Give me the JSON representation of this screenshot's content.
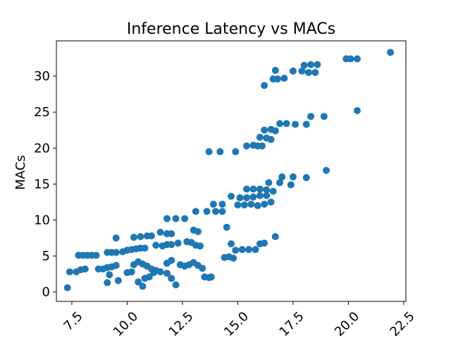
{
  "chart_data": {
    "type": "scatter",
    "title": "Inference Latency vs MACs",
    "xlabel": "",
    "ylabel": "MACs",
    "xlim": [
      6.8,
      22.6
    ],
    "ylim": [
      -1.3,
      34.9
    ],
    "x_ticks": [
      7.5,
      10.0,
      12.5,
      15.0,
      17.5,
      20.0,
      22.5
    ],
    "x_tick_labels": [
      "7.5",
      "10.0",
      "12.5",
      "15.0",
      "17.5",
      "20.0",
      "22.5"
    ],
    "y_ticks": [
      0,
      5,
      10,
      15,
      20,
      25,
      30
    ],
    "y_tick_labels": [
      "0",
      "5",
      "10",
      "15",
      "20",
      "25",
      "30"
    ],
    "grid": false,
    "legend": "none",
    "marker_color": "#1f77b4",
    "series": [
      {
        "points": [
          [
            7.3,
            0.6
          ],
          [
            7.4,
            2.8
          ],
          [
            7.7,
            2.8
          ],
          [
            7.9,
            3.1
          ],
          [
            8.1,
            3.2
          ],
          [
            7.8,
            5.1
          ],
          [
            8.0,
            5.1
          ],
          [
            8.2,
            5.1
          ],
          [
            8.4,
            5.1
          ],
          [
            8.6,
            5.1
          ],
          [
            8.7,
            3.2
          ],
          [
            8.9,
            3.2
          ],
          [
            9.1,
            3.4
          ],
          [
            9.3,
            3.5
          ],
          [
            9.5,
            3.7
          ],
          [
            9.1,
            5.5
          ],
          [
            9.3,
            5.5
          ],
          [
            9.5,
            5.5
          ],
          [
            9.8,
            5.6
          ],
          [
            10.0,
            5.8
          ],
          [
            10.2,
            5.9
          ],
          [
            10.4,
            6.0
          ],
          [
            10.6,
            6.1
          ],
          [
            10.8,
            6.1
          ],
          [
            9.5,
            7.5
          ],
          [
            10.3,
            7.6
          ],
          [
            10.6,
            7.7
          ],
          [
            10.9,
            7.8
          ],
          [
            11.1,
            7.8
          ],
          [
            9.1,
            1.3
          ],
          [
            9.2,
            2.4
          ],
          [
            9.6,
            1.6
          ],
          [
            10.0,
            2.7
          ],
          [
            10.2,
            2.8
          ],
          [
            10.5,
            1.4
          ],
          [
            10.7,
            0.8
          ],
          [
            10.8,
            1.9
          ],
          [
            11.0,
            2.1
          ],
          [
            11.2,
            2.7
          ],
          [
            10.3,
            3.8
          ],
          [
            10.5,
            4.2
          ],
          [
            10.7,
            3.9
          ],
          [
            10.9,
            3.6
          ],
          [
            11.1,
            3.2
          ],
          [
            11.3,
            3.0
          ],
          [
            11.5,
            2.8
          ],
          [
            11.3,
            6.5
          ],
          [
            11.6,
            6.4
          ],
          [
            11.8,
            6.6
          ],
          [
            12.0,
            6.6
          ],
          [
            12.3,
            6.8
          ],
          [
            11.5,
            8.3
          ],
          [
            11.8,
            8.1
          ],
          [
            12.0,
            8.1
          ],
          [
            11.8,
            10.2
          ],
          [
            12.2,
            10.2
          ],
          [
            12.6,
            10.2
          ],
          [
            11.8,
            2.6
          ],
          [
            12.0,
            1.9
          ],
          [
            12.2,
            1.0
          ],
          [
            11.8,
            4.0
          ],
          [
            12.0,
            4.4
          ],
          [
            12.4,
            3.8
          ],
          [
            12.6,
            3.6
          ],
          [
            12.8,
            3.8
          ],
          [
            13.0,
            4.1
          ],
          [
            13.2,
            3.7
          ],
          [
            13.4,
            3.3
          ],
          [
            13.5,
            2.1
          ],
          [
            13.7,
            2.0
          ],
          [
            13.8,
            2.1
          ],
          [
            12.7,
            7.0
          ],
          [
            12.9,
            6.9
          ],
          [
            13.1,
            6.5
          ],
          [
            13.3,
            6.4
          ],
          [
            13.0,
            8.6
          ],
          [
            13.2,
            8.4
          ],
          [
            13.1,
            11.2
          ],
          [
            13.6,
            11.2
          ],
          [
            14.0,
            11.2
          ],
          [
            14.3,
            11.2
          ],
          [
            13.9,
            12.2
          ],
          [
            14.3,
            12.2
          ],
          [
            14.5,
            9.0
          ],
          [
            14.4,
            4.8
          ],
          [
            14.6,
            4.9
          ],
          [
            14.8,
            4.7
          ],
          [
            14.7,
            6.7
          ],
          [
            14.9,
            5.8
          ],
          [
            15.2,
            5.9
          ],
          [
            15.5,
            5.9
          ],
          [
            15.8,
            5.9
          ],
          [
            13.7,
            19.5
          ],
          [
            14.2,
            19.5
          ],
          [
            14.9,
            19.5
          ],
          [
            14.7,
            13.3
          ],
          [
            15.0,
            12.1
          ],
          [
            15.3,
            12.1
          ],
          [
            15.6,
            12.2
          ],
          [
            15.9,
            12.0
          ],
          [
            16.2,
            12.2
          ],
          [
            16.5,
            12.5
          ],
          [
            15.1,
            13.1
          ],
          [
            15.4,
            13.1
          ],
          [
            15.7,
            13.2
          ],
          [
            16.0,
            13.4
          ],
          [
            16.3,
            13.4
          ],
          [
            15.4,
            14.3
          ],
          [
            15.7,
            14.3
          ],
          [
            16.0,
            14.3
          ],
          [
            16.3,
            14.2
          ],
          [
            16.6,
            14.0
          ],
          [
            16.4,
            15.2
          ],
          [
            16.9,
            15.2
          ],
          [
            16.0,
            6.7
          ],
          [
            16.2,
            6.8
          ],
          [
            16.7,
            7.7
          ],
          [
            15.4,
            20.3
          ],
          [
            15.7,
            20.4
          ],
          [
            15.9,
            20.3
          ],
          [
            16.1,
            20.3
          ],
          [
            16.0,
            21.5
          ],
          [
            16.3,
            21.4
          ],
          [
            16.5,
            21.2
          ],
          [
            16.2,
            22.5
          ],
          [
            16.5,
            22.6
          ],
          [
            16.7,
            22.4
          ],
          [
            16.9,
            23.4
          ],
          [
            17.2,
            23.4
          ],
          [
            17.6,
            23.3
          ],
          [
            18.1,
            23.3
          ],
          [
            17.0,
            16.0
          ],
          [
            17.5,
            16.0
          ],
          [
            17.4,
            14.9
          ],
          [
            18.1,
            15.9
          ],
          [
            19.0,
            16.9
          ],
          [
            18.3,
            24.4
          ],
          [
            18.9,
            24.4
          ],
          [
            20.4,
            25.2
          ],
          [
            16.2,
            28.7
          ],
          [
            16.6,
            29.6
          ],
          [
            16.8,
            29.6
          ],
          [
            17.1,
            29.7
          ],
          [
            16.7,
            30.8
          ],
          [
            17.5,
            30.7
          ],
          [
            17.9,
            30.7
          ],
          [
            18.2,
            30.5
          ],
          [
            18.5,
            30.5
          ],
          [
            18.0,
            31.5
          ],
          [
            18.3,
            31.6
          ],
          [
            18.6,
            31.6
          ],
          [
            19.9,
            32.4
          ],
          [
            20.1,
            32.4
          ],
          [
            20.4,
            32.4
          ],
          [
            21.9,
            33.3
          ]
        ]
      }
    ]
  }
}
